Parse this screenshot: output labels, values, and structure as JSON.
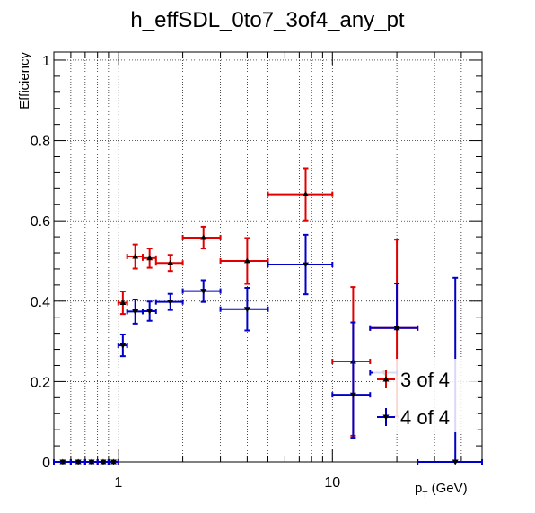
{
  "chart_data": {
    "type": "scatter",
    "title": "h_effSDL_0to7_3of4_any_pt",
    "ylabel": "Efficiency",
    "xlabel_main": "p",
    "xlabel_sub": "T",
    "xlabel_unit": " (GeV)",
    "xscale": "log",
    "xlim": [
      0.5,
      50
    ],
    "ylim": [
      0,
      1.02
    ],
    "grid": true,
    "legend_position": "bottom-right",
    "x_ticks": [
      {
        "value": 1,
        "label": "1"
      },
      {
        "value": 10,
        "label": "10"
      }
    ],
    "y_ticks": [
      {
        "value": 0,
        "label": "0"
      },
      {
        "value": 0.2,
        "label": "0.2"
      },
      {
        "value": 0.4,
        "label": "0.4"
      },
      {
        "value": 0.6,
        "label": "0.6"
      },
      {
        "value": 0.8,
        "label": "0.8"
      },
      {
        "value": 1,
        "label": "1"
      }
    ],
    "series": [
      {
        "name": "3 of 4",
        "color": "#e00000",
        "marker": "triangle-up",
        "points": [
          {
            "x": 0.55,
            "xlo": 0.5,
            "xhi": 0.6,
            "y": 0,
            "elo": 0,
            "ehi": 0
          },
          {
            "x": 0.65,
            "xlo": 0.6,
            "xhi": 0.7,
            "y": 0,
            "elo": 0,
            "ehi": 0
          },
          {
            "x": 0.75,
            "xlo": 0.7,
            "xhi": 0.8,
            "y": 0,
            "elo": 0,
            "ehi": 0
          },
          {
            "x": 0.85,
            "xlo": 0.8,
            "xhi": 0.9,
            "y": 0,
            "elo": 0,
            "ehi": 0
          },
          {
            "x": 0.95,
            "xlo": 0.9,
            "xhi": 1.0,
            "y": 0,
            "elo": 0,
            "ehi": 0
          },
          {
            "x": 1.05,
            "xlo": 1.0,
            "xhi": 1.1,
            "y": 0.396,
            "elo": 0.028,
            "ehi": 0.028
          },
          {
            "x": 1.2,
            "xlo": 1.1,
            "xhi": 1.3,
            "y": 0.511,
            "elo": 0.03,
            "ehi": 0.03
          },
          {
            "x": 1.4,
            "xlo": 1.3,
            "xhi": 1.5,
            "y": 0.507,
            "elo": 0.024,
            "ehi": 0.024
          },
          {
            "x": 1.75,
            "xlo": 1.5,
            "xhi": 2.0,
            "y": 0.495,
            "elo": 0.02,
            "ehi": 0.02
          },
          {
            "x": 2.5,
            "xlo": 2.0,
            "xhi": 3.0,
            "y": 0.558,
            "elo": 0.027,
            "ehi": 0.027
          },
          {
            "x": 4.0,
            "xlo": 3.0,
            "xhi": 5.0,
            "y": 0.5,
            "elo": 0.057,
            "ehi": 0.057
          },
          {
            "x": 7.5,
            "xlo": 5.0,
            "xhi": 10.0,
            "y": 0.666,
            "elo": 0.065,
            "ehi": 0.065
          },
          {
            "x": 12.5,
            "xlo": 10.0,
            "xhi": 15.0,
            "y": 0.25,
            "elo": 0.185,
            "ehi": 0.185
          },
          {
            "x": 20.0,
            "xlo": 15.0,
            "xhi": 25.0,
            "y": 0.333,
            "elo": 0.22,
            "ehi": 0.22
          }
        ]
      },
      {
        "name": "4 of 4",
        "color": "#0000c8",
        "marker": "triangle-down",
        "points": [
          {
            "x": 0.55,
            "xlo": 0.5,
            "xhi": 0.6,
            "y": 0,
            "elo": 0,
            "ehi": 0
          },
          {
            "x": 0.65,
            "xlo": 0.6,
            "xhi": 0.7,
            "y": 0,
            "elo": 0,
            "ehi": 0
          },
          {
            "x": 0.75,
            "xlo": 0.7,
            "xhi": 0.8,
            "y": 0,
            "elo": 0,
            "ehi": 0
          },
          {
            "x": 0.85,
            "xlo": 0.8,
            "xhi": 0.9,
            "y": 0,
            "elo": 0,
            "ehi": 0
          },
          {
            "x": 0.95,
            "xlo": 0.9,
            "xhi": 1.0,
            "y": 0,
            "elo": 0,
            "ehi": 0
          },
          {
            "x": 1.05,
            "xlo": 1.0,
            "xhi": 1.1,
            "y": 0.29,
            "elo": 0.027,
            "ehi": 0.027
          },
          {
            "x": 1.2,
            "xlo": 1.1,
            "xhi": 1.3,
            "y": 0.374,
            "elo": 0.03,
            "ehi": 0.03
          },
          {
            "x": 1.4,
            "xlo": 1.3,
            "xhi": 1.5,
            "y": 0.375,
            "elo": 0.024,
            "ehi": 0.024
          },
          {
            "x": 1.75,
            "xlo": 1.5,
            "xhi": 2.0,
            "y": 0.398,
            "elo": 0.02,
            "ehi": 0.02
          },
          {
            "x": 2.5,
            "xlo": 2.0,
            "xhi": 3.0,
            "y": 0.425,
            "elo": 0.027,
            "ehi": 0.027
          },
          {
            "x": 4.0,
            "xlo": 3.0,
            "xhi": 5.0,
            "y": 0.38,
            "elo": 0.053,
            "ehi": 0.053
          },
          {
            "x": 7.5,
            "xlo": 5.0,
            "xhi": 10.0,
            "y": 0.491,
            "elo": 0.074,
            "ehi": 0.074
          },
          {
            "x": 12.5,
            "xlo": 10.0,
            "xhi": 15.0,
            "y": 0.167,
            "elo": 0.107,
            "ehi": 0.18
          },
          {
            "x": 17.5,
            "xlo": 15.0,
            "xhi": 20.0,
            "y": 0.222,
            "elo": 0.0,
            "ehi": 0.0
          },
          {
            "x": 20.0,
            "xlo": 15.0,
            "xhi": 25.0,
            "y": 0.333,
            "elo": 0.0,
            "ehi": 0.111
          },
          {
            "x": 37.5,
            "xlo": 25.0,
            "xhi": 50.0,
            "y": 0,
            "elo": 0,
            "ehi": 0.458
          }
        ]
      }
    ]
  }
}
